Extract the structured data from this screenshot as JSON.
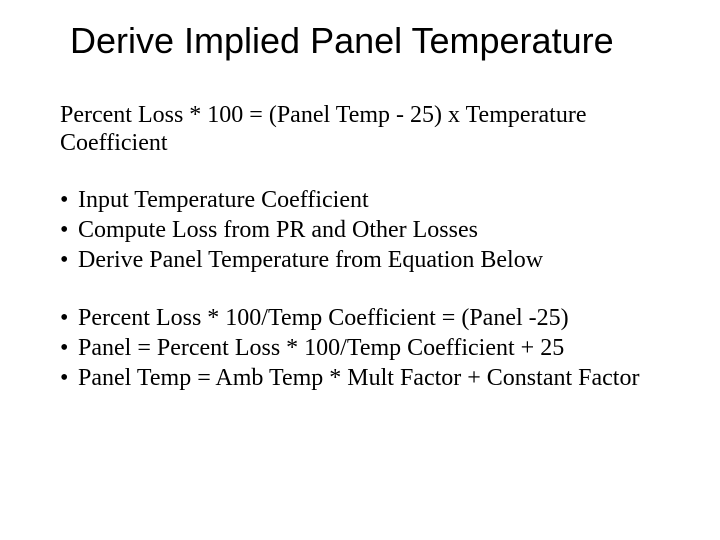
{
  "colors": {
    "background": "#ffffff",
    "text": "#000000"
  },
  "typography": {
    "title_font": "Segoe UI / Calibri Light",
    "title_fontsize_pt": 28,
    "body_font": "Times New Roman",
    "body_fontsize_pt": 18
  },
  "title": "Derive Implied Panel Temperature",
  "equation": "Percent Loss * 100 = (Panel Temp - 25) x Temperature Coefficient",
  "bullets_group_1": [
    "Input Temperature Coefficient",
    "Compute Loss from PR and Other Losses",
    "Derive Panel Temperature from Equation Below"
  ],
  "bullets_group_2": [
    "Percent Loss * 100/Temp Coefficient = (Panel -25)",
    "Panel = Percent Loss * 100/Temp Coefficient + 25",
    "Panel Temp = Amb Temp * Mult Factor + Constant Factor"
  ]
}
